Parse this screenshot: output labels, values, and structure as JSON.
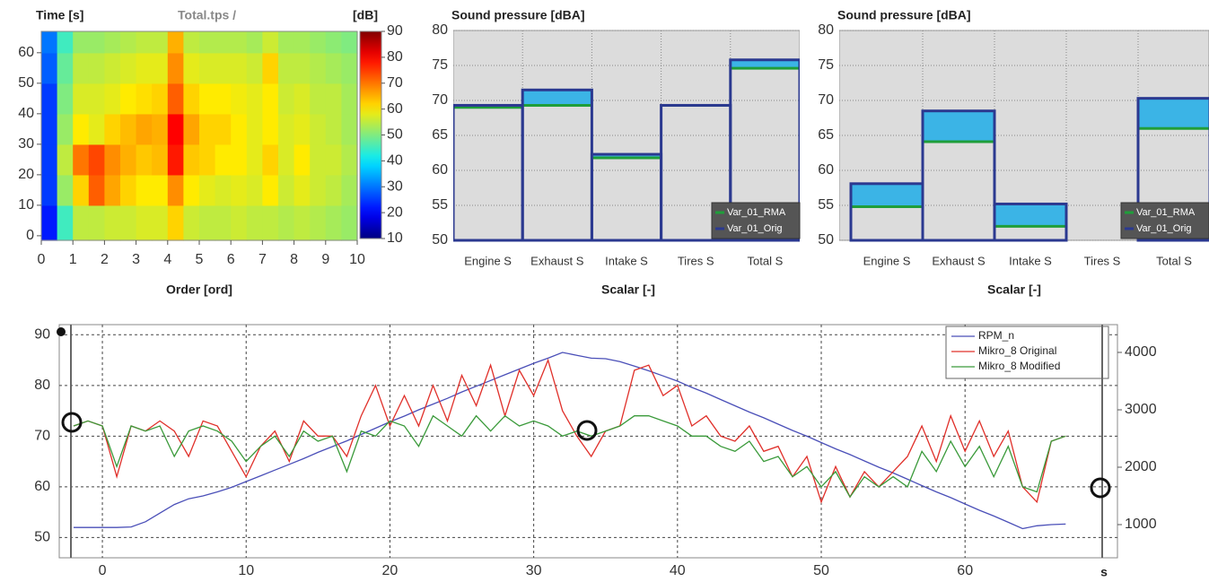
{
  "chart_data": [
    {
      "type": "heatmap",
      "title": "Total.tps /",
      "ylabel": "Time [s]",
      "zlabel": "[dB]",
      "xlabel": "Order [ord]",
      "xlim": [
        0,
        10
      ],
      "ylim": [
        -1.5,
        67
      ],
      "xticks": [
        0,
        1,
        2,
        3,
        4,
        5,
        6,
        7,
        8,
        9,
        10
      ],
      "yticks": [
        0,
        10,
        20,
        30,
        40,
        50,
        60
      ],
      "zlim": [
        10,
        90
      ],
      "zticks": [
        10,
        20,
        30,
        40,
        50,
        60,
        70,
        80,
        90
      ],
      "xbins": [
        0,
        0.5,
        1,
        1.5,
        2,
        2.5,
        3,
        3.5,
        4,
        4.5,
        5,
        5.5,
        6,
        6.5,
        7,
        7.5,
        8,
        8.5,
        9,
        9.5,
        10
      ],
      "ybins": [
        -1.5,
        10,
        20,
        30,
        40,
        50,
        60,
        67
      ],
      "z": [
        [
          22,
          45,
          55,
          55,
          56,
          56,
          57,
          57,
          62,
          56,
          55,
          55,
          56,
          55,
          55,
          54,
          55,
          54,
          53,
          52
        ],
        [
          25,
          52,
          62,
          72,
          66,
          62,
          60,
          60,
          68,
          60,
          58,
          57,
          58,
          57,
          60,
          56,
          58,
          56,
          55,
          53
        ],
        [
          25,
          55,
          70,
          74,
          68,
          65,
          63,
          64,
          78,
          63,
          62,
          60,
          60,
          58,
          62,
          57,
          60,
          56,
          56,
          54
        ],
        [
          25,
          52,
          60,
          58,
          62,
          64,
          66,
          65,
          80,
          66,
          62,
          62,
          60,
          58,
          60,
          57,
          58,
          56,
          55,
          53
        ],
        [
          25,
          50,
          57,
          57,
          58,
          60,
          61,
          62,
          72,
          62,
          60,
          60,
          59,
          58,
          60,
          56,
          57,
          55,
          55,
          53
        ],
        [
          28,
          48,
          55,
          55,
          56,
          57,
          58,
          58,
          68,
          58,
          57,
          57,
          57,
          56,
          62,
          55,
          55,
          54,
          53,
          52
        ],
        [
          30,
          45,
          52,
          52,
          53,
          54,
          55,
          55,
          65,
          55,
          54,
          54,
          54,
          53,
          56,
          53,
          53,
          52,
          51,
          50
        ]
      ]
    },
    {
      "type": "bar",
      "title": "Sound pressure [dBA]",
      "xlabel": "Scalar [-]",
      "categories": [
        "Engine S",
        "Exhaust S",
        "Intake S",
        "Tires S",
        "Total S"
      ],
      "series": [
        {
          "name": "Var_01_RMA",
          "color": "#1f9e3a",
          "values": [
            69.0,
            69.3,
            61.8,
            69.3,
            74.6
          ]
        },
        {
          "name": "Var_01_Orig",
          "color": "#2b3990",
          "values": [
            69.3,
            71.5,
            62.3,
            69.3,
            75.8
          ]
        }
      ],
      "difference_color": "#3bb4e6",
      "ylim": [
        50,
        80
      ],
      "yticks": [
        50,
        55,
        60,
        65,
        70,
        75,
        80
      ],
      "grid": true,
      "legend": "bottom right"
    },
    {
      "type": "bar",
      "title": "Sound pressure [dBA]",
      "xlabel": "Scalar [-]",
      "categories": [
        "Engine S",
        "Exhaust S",
        "Intake S",
        "Tires S",
        "Total S"
      ],
      "series": [
        {
          "name": "Var_01_RMA",
          "color": "#1f9e3a",
          "values": [
            54.8,
            64.1,
            52.0,
            null,
            66.0
          ]
        },
        {
          "name": "Var_01_Orig",
          "color": "#2b3990",
          "values": [
            58.1,
            68.5,
            55.2,
            null,
            70.3
          ]
        }
      ],
      "difference_color": "#3bb4e6",
      "ylim": [
        50,
        80
      ],
      "yticks": [
        50,
        55,
        60,
        65,
        70,
        75,
        80
      ],
      "grid": true,
      "legend": "bottom right"
    },
    {
      "type": "line",
      "xlabel": "s",
      "xlim": [
        -3,
        70.6
      ],
      "xticks": [
        0,
        10,
        20,
        30,
        40,
        50,
        60
      ],
      "ylim": [
        46,
        92
      ],
      "yticks": [
        50,
        60,
        70,
        80,
        90
      ],
      "y2lim": [
        422,
        4484
      ],
      "y2ticks": [
        1000,
        2000,
        3000,
        4000
      ],
      "grid": true,
      "legend": "top right",
      "x": [
        -2,
        -1,
        0,
        1,
        2,
        3,
        4,
        5,
        6,
        7,
        8,
        9,
        10,
        11,
        12,
        13,
        14,
        15,
        16,
        17,
        18,
        19,
        20,
        21,
        22,
        23,
        24,
        25,
        26,
        27,
        28,
        29,
        30,
        31,
        32,
        33,
        34,
        35,
        36,
        37,
        38,
        39,
        40,
        41,
        42,
        43,
        44,
        45,
        46,
        47,
        48,
        49,
        50,
        51,
        52,
        53,
        54,
        55,
        56,
        57,
        58,
        59,
        60,
        61,
        62,
        63,
        64,
        65,
        66,
        67
      ],
      "series": [
        {
          "name": "RPM_n",
          "color": "#4a4fb8",
          "axis": "y2",
          "values": [
            950,
            950,
            950,
            950,
            960,
            1050,
            1200,
            1350,
            1450,
            1500,
            1570,
            1650,
            1750,
            1850,
            1950,
            2050,
            2150,
            2260,
            2360,
            2460,
            2570,
            2680,
            2790,
            2890,
            3000,
            3100,
            3200,
            3310,
            3410,
            3510,
            3610,
            3710,
            3810,
            3900,
            4000,
            3950,
            3900,
            3890,
            3840,
            3760,
            3680,
            3590,
            3500,
            3390,
            3290,
            3180,
            3070,
            2960,
            2860,
            2750,
            2640,
            2540,
            2430,
            2320,
            2220,
            2110,
            2000,
            1900,
            1790,
            1680,
            1570,
            1470,
            1360,
            1250,
            1150,
            1040,
            930,
            980,
            1000,
            1010
          ]
        },
        {
          "name": "Mikro_8 Original",
          "color": "#e0302a",
          "values": [
            72,
            73,
            72,
            62,
            72,
            71,
            73,
            71,
            66,
            73,
            72,
            67,
            62,
            68,
            71,
            65,
            73,
            70,
            70,
            66,
            74,
            80,
            72,
            78,
            72,
            80,
            73,
            82,
            76,
            84,
            74,
            83,
            78,
            85,
            75,
            70,
            66,
            71,
            72,
            83,
            84,
            78,
            80,
            72,
            74,
            70,
            69,
            72,
            67,
            68,
            62,
            66,
            57,
            64,
            58,
            63,
            60,
            63,
            66,
            72,
            65,
            74,
            67,
            73,
            66,
            71,
            60,
            57,
            69,
            70
          ]
        },
        {
          "name": "Mikro_8 Modified",
          "color": "#3a9a3a",
          "values": [
            72,
            73,
            72,
            64,
            72,
            71,
            72,
            66,
            71,
            72,
            71,
            69,
            65,
            68,
            70,
            66,
            71,
            69,
            70,
            63,
            71,
            70,
            73,
            72,
            68,
            74,
            72,
            70,
            74,
            71,
            74,
            72,
            73,
            72,
            70,
            71,
            70,
            71,
            72,
            74,
            74,
            73,
            72,
            70,
            70,
            68,
            67,
            69,
            65,
            66,
            62,
            64,
            60,
            63,
            58,
            62,
            60,
            62,
            60,
            67,
            63,
            69,
            64,
            68,
            62,
            68,
            60,
            59,
            69,
            70
          ]
        }
      ]
    }
  ]
}
